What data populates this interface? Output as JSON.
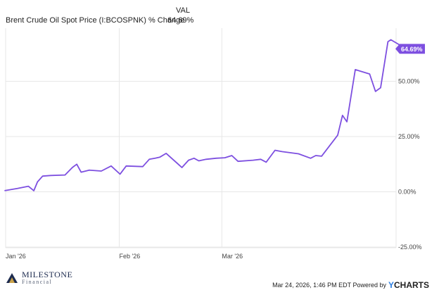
{
  "header": {
    "value_column_label": "VAL",
    "series_label": "Brent Crude Oil Spot Price (I:BCOSPNK) % Change",
    "series_value": "64.69%"
  },
  "colors": {
    "line": "#7d4fe0",
    "grid": "#e7e7e7",
    "axis_text": "#444444"
  },
  "chart_data": {
    "type": "line",
    "title": "",
    "xlabel": "",
    "ylabel": "",
    "x_ticks": [
      "Jan '26",
      "Feb '26",
      "Mar '26"
    ],
    "y_ticks": [
      "50.00%",
      "25.00%",
      "0.00%",
      "-25.00%"
    ],
    "ylim": [
      -25,
      75
    ],
    "grid": true,
    "end_label": "64.69%",
    "series": [
      {
        "values": [
          [
            -0.3,
            0.5
          ],
          [
            3.2,
            1.5
          ],
          [
            6.2,
            2.5
          ],
          [
            7.7,
            0.5
          ],
          [
            8.7,
            4.5
          ],
          [
            10.1,
            7.1
          ],
          [
            12.3,
            7.4
          ],
          [
            16.2,
            7.6
          ],
          [
            18.2,
            11.0
          ],
          [
            19.4,
            12.5
          ],
          [
            20.6,
            8.9
          ],
          [
            22.8,
            9.8
          ],
          [
            26.1,
            9.4
          ],
          [
            28.8,
            11.7
          ],
          [
            31.2,
            8.0
          ],
          [
            32.9,
            11.7
          ],
          [
            37.4,
            11.4
          ],
          [
            39.2,
            14.7
          ],
          [
            40.8,
            15.2
          ],
          [
            42.1,
            15.7
          ],
          [
            43.8,
            17.4
          ],
          [
            48.1,
            11.0
          ],
          [
            49.9,
            14.3
          ],
          [
            51.4,
            15.2
          ],
          [
            52.7,
            14.0
          ],
          [
            54.7,
            14.7
          ],
          [
            57.4,
            15.2
          ],
          [
            59.8,
            15.4
          ],
          [
            61.7,
            16.4
          ],
          [
            63.4,
            13.8
          ],
          [
            67.5,
            14.3
          ],
          [
            69.6,
            14.7
          ],
          [
            71.1,
            13.4
          ],
          [
            73.5,
            18.8
          ],
          [
            75.4,
            18.2
          ],
          [
            79.9,
            17.2
          ],
          [
            83.2,
            15.2
          ],
          [
            84.6,
            16.4
          ],
          [
            86.2,
            16.1
          ],
          [
            90.6,
            25.6
          ],
          [
            91.9,
            34.6
          ],
          [
            93.1,
            31.7
          ],
          [
            95.4,
            55.3
          ],
          [
            99.3,
            53.3
          ],
          [
            100.9,
            45.4
          ],
          [
            102.3,
            47.1
          ],
          [
            104.3,
            67.9
          ],
          [
            105.1,
            68.8
          ],
          [
            109.3,
            64.69
          ]
        ]
      }
    ]
  },
  "footer": {
    "timestamp": "Mar 24, 2026, 1:46 PM EDT Powered by",
    "brand_y": "Y",
    "brand_rest": "CHARTS"
  },
  "logo": {
    "name": "MILESTONE",
    "subtitle": "Financial"
  }
}
